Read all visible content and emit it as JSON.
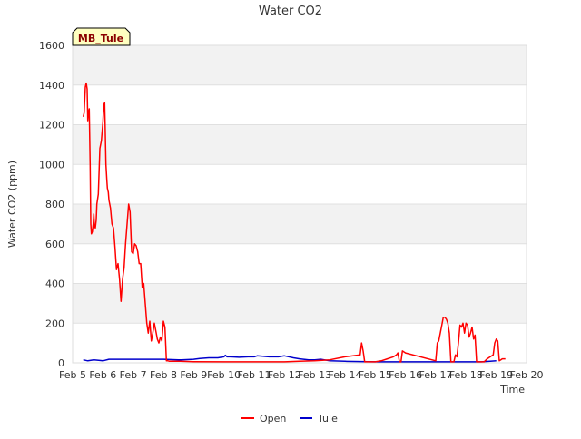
{
  "chart_data": {
    "type": "line",
    "title": "Water CO2",
    "xlabel": "Time",
    "ylabel": "Water CO2 (ppm)",
    "ylim": [
      0,
      1600
    ],
    "xlim": [
      5,
      20
    ],
    "yticks": [
      0,
      200,
      400,
      600,
      800,
      1000,
      1200,
      1400,
      1600
    ],
    "ytick_labels": [
      "0",
      "200",
      "400",
      "600",
      "800",
      "1000",
      "1200",
      "1400",
      "1600"
    ],
    "xticks": [
      5,
      6,
      7,
      8,
      9,
      10,
      11,
      12,
      13,
      14,
      15,
      16,
      17,
      18,
      19,
      20
    ],
    "xtick_labels": [
      "Feb 5",
      "Feb 6",
      "Feb 7",
      "Feb 8",
      "Feb 9",
      "Feb 10",
      "Feb 11",
      "Feb 12",
      "Feb 13",
      "Feb 14",
      "Feb 15",
      "Feb 16",
      "Feb 17",
      "Feb 18",
      "Feb 19",
      "Feb 20"
    ],
    "grid": "horizontal bands",
    "annotation": "MB_Tule",
    "legend": {
      "position": "bottom-center",
      "entries": [
        "Open",
        "Tule"
      ]
    },
    "series": [
      {
        "name": "Open",
        "color": "#ff0000",
        "x": [
          5.35,
          5.38,
          5.42,
          5.45,
          5.48,
          5.5,
          5.52,
          5.55,
          5.58,
          5.6,
          5.62,
          5.65,
          5.68,
          5.7,
          5.72,
          5.75,
          5.78,
          5.8,
          5.85,
          5.9,
          5.95,
          6.0,
          6.03,
          6.06,
          6.1,
          6.13,
          6.15,
          6.18,
          6.2,
          6.25,
          6.3,
          6.35,
          6.4,
          6.45,
          6.5,
          6.55,
          6.6,
          6.65,
          6.7,
          6.75,
          6.8,
          6.85,
          6.9,
          6.95,
          7.0,
          7.05,
          7.1,
          7.15,
          7.2,
          7.25,
          7.3,
          7.35,
          7.4,
          7.45,
          7.5,
          7.55,
          7.6,
          7.65,
          7.7,
          7.75,
          7.8,
          7.85,
          7.9,
          7.95,
          8.0,
          8.05,
          8.1,
          8.15,
          8.2,
          8.25,
          8.3,
          8.35,
          8.4,
          8.45,
          8.5,
          8.55,
          9.0,
          10.0,
          11.0,
          12.0,
          12.5,
          13.0,
          13.5,
          14.0,
          14.5,
          14.55,
          14.6,
          14.65,
          14.8,
          15.0,
          15.2,
          15.4,
          15.6,
          15.7,
          15.75,
          15.8,
          15.85,
          15.9,
          16.0,
          17.0,
          17.05,
          17.1,
          17.15,
          17.2,
          17.25,
          17.3,
          17.35,
          17.4,
          17.45,
          17.5,
          17.55,
          17.6,
          17.65,
          17.7,
          17.75,
          17.8,
          17.85,
          17.9,
          17.95,
          18.0,
          18.05,
          18.1,
          18.15,
          18.2,
          18.25,
          18.3,
          18.35,
          18.4,
          18.45,
          18.5,
          18.55,
          18.6,
          18.7,
          18.8,
          18.9,
          18.95,
          19.0,
          19.05,
          19.1,
          19.15,
          19.2,
          19.3
        ],
        "values": [
          1240,
          1260,
          1390,
          1410,
          1380,
          1220,
          1260,
          1280,
          1000,
          700,
          650,
          660,
          700,
          750,
          690,
          680,
          720,
          800,
          850,
          1080,
          1120,
          1210,
          1300,
          1310,
          1000,
          920,
          880,
          860,
          820,
          780,
          700,
          680,
          580,
          470,
          500,
          420,
          310,
          420,
          480,
          600,
          700,
          800,
          760,
          560,
          550,
          600,
          590,
          560,
          500,
          500,
          380,
          400,
          300,
          200,
          150,
          210,
          110,
          150,
          200,
          160,
          120,
          100,
          130,
          110,
          210,
          180,
          10,
          10,
          8,
          8,
          8,
          8,
          8,
          8,
          8,
          8,
          6,
          5,
          5,
          5,
          8,
          10,
          15,
          30,
          40,
          100,
          60,
          5,
          5,
          5,
          10,
          20,
          30,
          40,
          50,
          5,
          5,
          60,
          50,
          10,
          100,
          110,
          150,
          190,
          230,
          230,
          220,
          200,
          150,
          5,
          5,
          5,
          40,
          30,
          100,
          190,
          180,
          200,
          150,
          200,
          190,
          130,
          150,
          180,
          120,
          140,
          5,
          5,
          5,
          5,
          5,
          5,
          20,
          30,
          40,
          100,
          120,
          110,
          10,
          15,
          20,
          20
        ]
      },
      {
        "name": "Tule",
        "color": "#0000cc",
        "x": [
          5.35,
          5.5,
          5.7,
          5.9,
          6.0,
          6.2,
          6.5,
          7.0,
          7.5,
          8.0,
          8.5,
          8.6,
          9.0,
          9.2,
          9.5,
          9.8,
          10.0,
          10.05,
          10.1,
          10.2,
          10.5,
          10.8,
          11.0,
          11.1,
          11.5,
          11.8,
          12.0,
          12.3,
          12.5,
          12.8,
          13.0,
          13.2,
          13.5,
          14.0,
          15.0,
          15.5,
          16.0,
          16.5,
          17.0,
          17.5,
          18.0,
          18.5,
          18.8,
          19.0
        ],
        "values": [
          15,
          10,
          15,
          12,
          10,
          18,
          18,
          18,
          18,
          18,
          15,
          15,
          18,
          22,
          25,
          25,
          30,
          38,
          30,
          30,
          28,
          30,
          30,
          35,
          30,
          30,
          35,
          25,
          20,
          15,
          15,
          18,
          10,
          8,
          5,
          5,
          5,
          5,
          5,
          5,
          5,
          5,
          8,
          10
        ]
      }
    ]
  }
}
